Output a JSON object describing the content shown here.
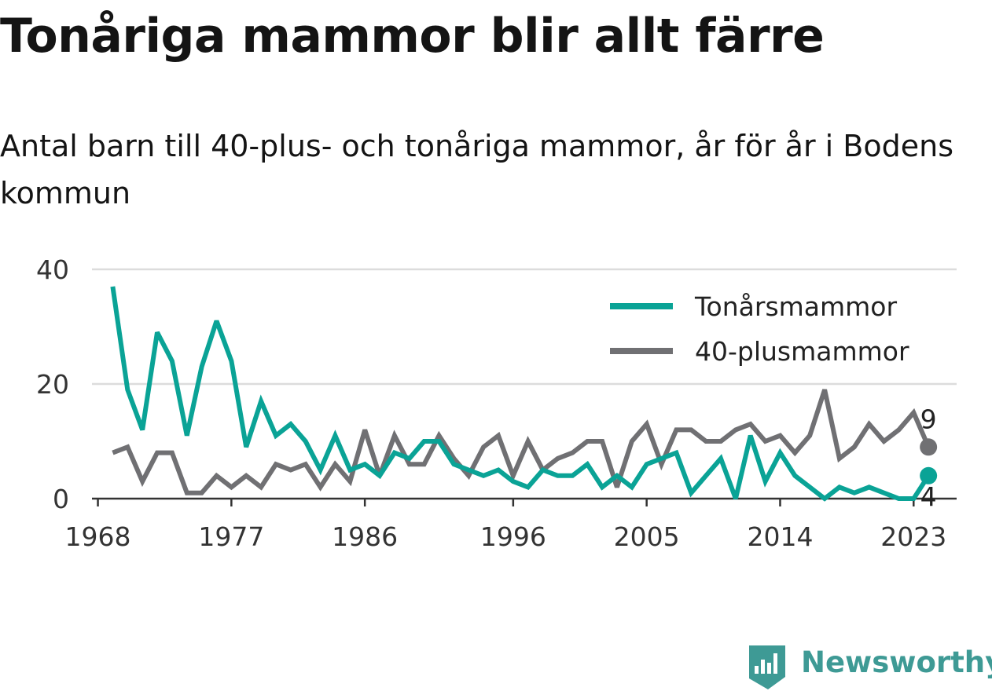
{
  "header": {
    "title": "Tonåriga mammor blir allt färre",
    "subtitle": "Antal barn till 40-plus- och tonåriga mammor, år för år i Bodens kommun"
  },
  "brand": {
    "name": "Newsworthy",
    "icon": "newsworthy-logo-icon",
    "color": "#3e9a95"
  },
  "chart_data": {
    "type": "line",
    "x": [
      1969,
      1970,
      1971,
      1972,
      1973,
      1974,
      1975,
      1976,
      1977,
      1978,
      1979,
      1980,
      1981,
      1982,
      1983,
      1984,
      1985,
      1986,
      1987,
      1988,
      1989,
      1990,
      1991,
      1992,
      1993,
      1994,
      1995,
      1996,
      1997,
      1998,
      1999,
      2000,
      2001,
      2002,
      2003,
      2004,
      2005,
      2006,
      2007,
      2008,
      2009,
      2010,
      2011,
      2012,
      2013,
      2014,
      2015,
      2016,
      2017,
      2018,
      2019,
      2020,
      2021,
      2022,
      2023,
      2024
    ],
    "series": [
      {
        "name": "Tonårsmammor",
        "color": "#0aa396",
        "values": [
          37,
          19,
          12,
          29,
          24,
          11,
          23,
          31,
          24,
          9,
          17,
          11,
          13,
          10,
          5,
          11,
          5,
          6,
          4,
          8,
          7,
          10,
          10,
          6,
          5,
          4,
          5,
          3,
          2,
          5,
          4,
          4,
          6,
          2,
          4,
          2,
          6,
          7,
          8,
          1,
          4,
          7,
          0,
          11,
          3,
          8,
          4,
          2,
          0,
          2,
          1,
          2,
          1,
          0,
          0,
          4
        ],
        "end_label": "4"
      },
      {
        "name": "40-plusmammor",
        "color": "#707073",
        "values": [
          8,
          9,
          3,
          8,
          8,
          1,
          1,
          4,
          2,
          4,
          2,
          6,
          5,
          6,
          2,
          6,
          3,
          12,
          4,
          11,
          6,
          6,
          11,
          7,
          4,
          9,
          11,
          4,
          10,
          5,
          7,
          8,
          10,
          10,
          2,
          10,
          13,
          6,
          12,
          12,
          10,
          10,
          12,
          13,
          10,
          11,
          8,
          11,
          19,
          7,
          9,
          13,
          10,
          12,
          15,
          9
        ],
        "end_label": "9"
      }
    ],
    "x_ticks": [
      "1968",
      "1977",
      "1986",
      "1996",
      "2005",
      "2014",
      "2023"
    ],
    "y_ticks": [
      "0",
      "20",
      "40"
    ],
    "ylim": [
      0,
      40
    ],
    "xlim": [
      1967.6,
      2025.9
    ],
    "grid": true,
    "legend_position": "top-right"
  }
}
